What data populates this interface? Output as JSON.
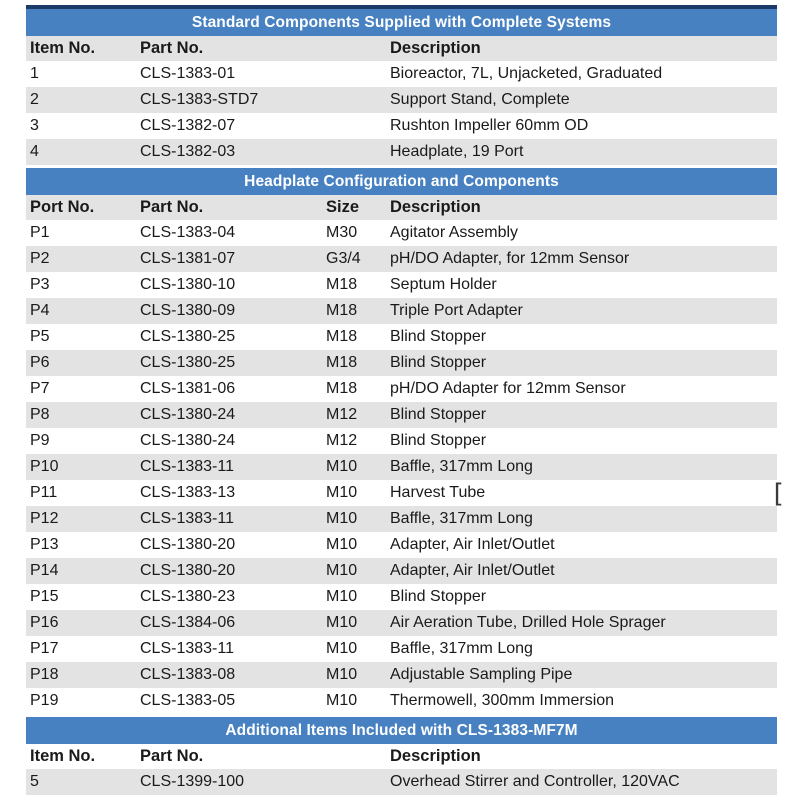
{
  "colors": {
    "band_blue": "#4781C2",
    "band_top_border": "#1E3A68",
    "stripe_gray": "#E3E3E3",
    "band_text": "#FFFFFF",
    "body_text": "#1A1A1A"
  },
  "artifact": {
    "text": "["
  },
  "sections": [
    {
      "title": "Standard Components Supplied with Complete Systems",
      "columns": [
        "Item No.",
        "Part No.",
        "Description"
      ],
      "rows": [
        [
          "1",
          "CLS-1383-01",
          "Bioreactor, 7L, Unjacketed, Graduated"
        ],
        [
          "2",
          "CLS-1383-STD7",
          "Support Stand, Complete"
        ],
        [
          "3",
          "CLS-1382-07",
          "Rushton Impeller 60mm OD"
        ],
        [
          "4",
          "CLS-1382-03",
          "Headplate, 19 Port"
        ]
      ]
    },
    {
      "title": "Headplate Configuration and Components",
      "columns": [
        "Port No.",
        "Part No.",
        "Size",
        "Description"
      ],
      "rows": [
        [
          "P1",
          "CLS-1383-04",
          "M30",
          "Agitator Assembly"
        ],
        [
          "P2",
          "CLS-1381-07",
          "G3/4",
          "pH/DO Adapter, for 12mm Sensor"
        ],
        [
          "P3",
          "CLS-1380-10",
          "M18",
          "Septum Holder"
        ],
        [
          "P4",
          "CLS-1380-09",
          "M18",
          "Triple Port Adapter"
        ],
        [
          "P5",
          "CLS-1380-25",
          "M18",
          "Blind Stopper"
        ],
        [
          "P6",
          "CLS-1380-25",
          "M18",
          "Blind Stopper"
        ],
        [
          "P7",
          "CLS-1381-06",
          "M18",
          "pH/DO Adapter for 12mm Sensor"
        ],
        [
          "P8",
          "CLS-1380-24",
          "M12",
          "Blind Stopper"
        ],
        [
          "P9",
          "CLS-1380-24",
          "M12",
          "Blind Stopper"
        ],
        [
          "P10",
          "CLS-1383-11",
          "M10",
          "Baffle, 317mm Long"
        ],
        [
          "P11",
          "CLS-1383-13",
          "M10",
          "Harvest Tube"
        ],
        [
          "P12",
          "CLS-1383-11",
          "M10",
          "Baffle, 317mm Long"
        ],
        [
          "P13",
          "CLS-1380-20",
          "M10",
          "Adapter, Air Inlet/Outlet"
        ],
        [
          "P14",
          "CLS-1380-20",
          "M10",
          "Adapter, Air Inlet/Outlet"
        ],
        [
          "P15",
          "CLS-1380-23",
          "M10",
          "Blind Stopper"
        ],
        [
          "P16",
          "CLS-1384-06",
          "M10",
          "Air Aeration Tube, Drilled Hole Sprager"
        ],
        [
          "P17",
          "CLS-1383-11",
          "M10",
          "Baffle, 317mm Long"
        ],
        [
          "P18",
          "CLS-1383-08",
          "M10",
          "Adjustable Sampling Pipe"
        ],
        [
          "P19",
          "CLS-1383-05",
          "M10",
          "Thermowell, 300mm Immersion"
        ]
      ]
    },
    {
      "title": "Additional Items Included with CLS-1383-MF7M",
      "columns": [
        "Item No.",
        "Part No.",
        "Description"
      ],
      "rows": [
        [
          "5",
          "CLS-1399-100",
          "Overhead Stirrer and Controller, 120VAC"
        ]
      ]
    }
  ]
}
